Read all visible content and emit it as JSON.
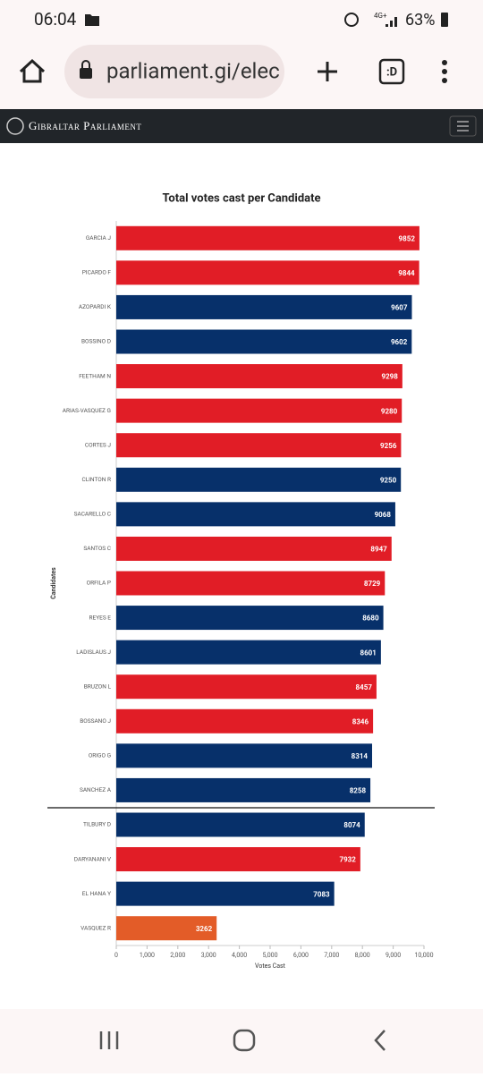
{
  "status_bar": {
    "time": "06:04",
    "network": "4G+",
    "battery": "63%"
  },
  "browser": {
    "url": "parliament.gi/elec",
    "tab_label": ":D"
  },
  "site": {
    "title": "Gibraltar Parliament"
  },
  "chart_data": {
    "type": "bar",
    "orientation": "horizontal",
    "title": "Total votes cast per Candidate",
    "x_label": "Votes Cast",
    "y_label": "Candidates",
    "categories": [
      "GARCIA J",
      "PICARDO F",
      "AZOPARDI K",
      "BOSSINO D",
      "FEETHAM N",
      "ARIAS-VASQUEZ G",
      "CORTES J",
      "CLINTON R",
      "SACARELLO C",
      "SANTOS C",
      "ORFILA P",
      "REYES E",
      "LADISLAUS J",
      "BRUZON L",
      "BOSSANO J",
      "ORIGO G",
      "SANCHEZ A",
      "TILBURY D",
      "DARYANANI V",
      "EL HANA Y",
      "VASQUEZ R"
    ],
    "values": [
      9852,
      9844,
      9607,
      9602,
      9298,
      9280,
      9256,
      9250,
      9068,
      8947,
      8729,
      8680,
      8601,
      8457,
      8346,
      8314,
      8258,
      8074,
      7932,
      7083,
      3262
    ],
    "colors": [
      "#e11d26",
      "#e11d26",
      "#07306a",
      "#07306a",
      "#e11d26",
      "#e11d26",
      "#e11d26",
      "#07306a",
      "#07306a",
      "#e11d26",
      "#e11d26",
      "#07306a",
      "#07306a",
      "#e11d26",
      "#e11d26",
      "#07306a",
      "#07306a",
      "#07306a",
      "#e11d26",
      "#07306a",
      "#e35c28"
    ],
    "xlim": [
      0,
      10000
    ],
    "xticks": [
      0,
      {
        "value": 1000,
        "label": "1,000"
      },
      {
        "value": 2000,
        "label": "2,000"
      },
      {
        "value": 3000,
        "label": "3,000"
      },
      {
        "value": 4000,
        "label": "4,000"
      },
      {
        "value": 5000,
        "label": "5,000"
      },
      {
        "value": 6000,
        "label": "6,000"
      },
      {
        "value": 7000,
        "label": "7,000"
      },
      {
        "value": 8000,
        "label": "8,000"
      },
      {
        "value": 9000,
        "label": "9,000"
      },
      {
        "value": 10000,
        "label": "10,000"
      }
    ]
  }
}
